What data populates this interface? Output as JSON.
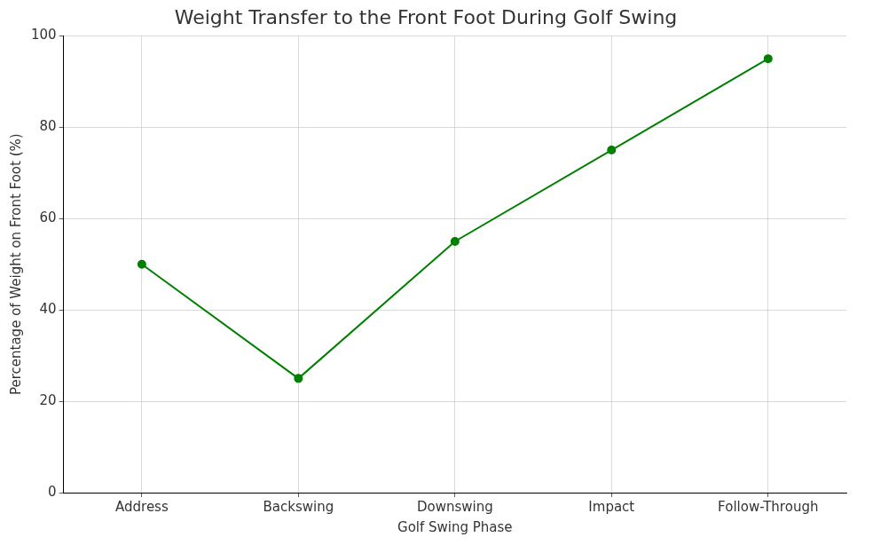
{
  "chart_data": {
    "type": "line",
    "title": "Weight Transfer to the Front Foot During Golf Swing",
    "x_label": "Golf Swing Phase",
    "y_label": "Percentage of Weight on Front Foot (%)",
    "categories": [
      "Address",
      "Backswing",
      "Downswing",
      "Impact",
      "Follow-Through"
    ],
    "values": [
      50,
      25,
      55,
      75,
      95
    ],
    "color": "#008000",
    "marker": "circle",
    "line_style": "solid",
    "ylim": [
      0,
      100
    ],
    "yticks": [
      0,
      20,
      40,
      60,
      80,
      100
    ],
    "grid": true
  }
}
